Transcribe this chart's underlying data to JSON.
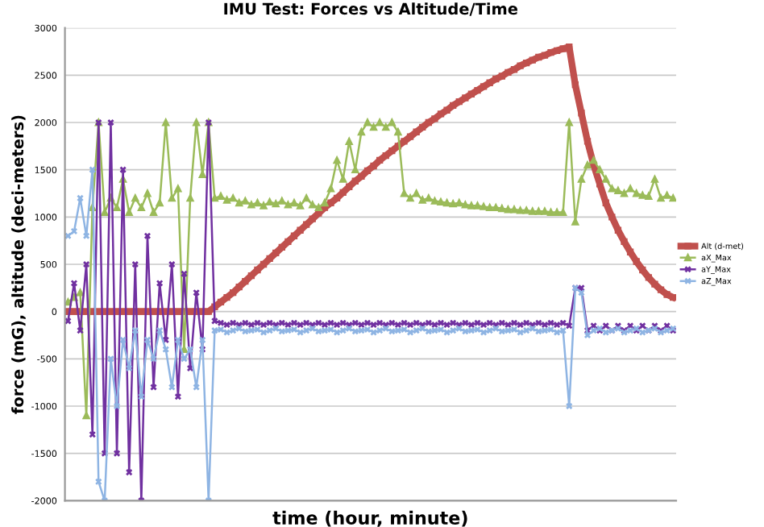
{
  "chart_data": {
    "type": "line",
    "title": "IMU Test: Forces vs Altitude/Time",
    "xlabel": "time (hour, minute)",
    "ylabel": "force (mG), altitude (deci-meters)",
    "categories": [
      null,
      null,
      null,
      null,
      null,
      null,
      null,
      null,
      null,
      null,
      null,
      null,
      null,
      null,
      null,
      null,
      null,
      null,
      null,
      null,
      null,
      null,
      null,
      null,
      null,
      null,
      null,
      null,
      null,
      null,
      null,
      null,
      null,
      null,
      null,
      null,
      null,
      null,
      null,
      null,
      null,
      null,
      null,
      null,
      null,
      null,
      null,
      null,
      null,
      null,
      null,
      null,
      null,
      null,
      null,
      null,
      null,
      null,
      null,
      null,
      null,
      null,
      null,
      null,
      null,
      null,
      null,
      null,
      null,
      null,
      null,
      null,
      null,
      null,
      null,
      null,
      null,
      null,
      null,
      null,
      null,
      null,
      null,
      null,
      null,
      null,
      null,
      null,
      null,
      null,
      null,
      null,
      null,
      null,
      null,
      null,
      null,
      null,
      null,
      null
    ],
    "ylim": [
      -2000,
      3000
    ],
    "yticks": [
      -2000,
      -1500,
      -1000,
      -500,
      0,
      500,
      1000,
      1500,
      2000,
      2500,
      3000
    ],
    "grid": "y",
    "legend": "right",
    "line_style": "solid",
    "series": [
      {
        "name": "Alt (d-met)",
        "color": "#c0504d",
        "marker": "square",
        "values": [
          0,
          0,
          0,
          0,
          0,
          0,
          0,
          0,
          0,
          0,
          0,
          0,
          0,
          0,
          0,
          0,
          0,
          0,
          0,
          0,
          0,
          0,
          0,
          0,
          50,
          100,
          150,
          200,
          260,
          320,
          380,
          440,
          500,
          560,
          620,
          680,
          740,
          800,
          860,
          920,
          980,
          1040,
          1100,
          1150,
          1200,
          1260,
          1320,
          1380,
          1430,
          1490,
          1540,
          1600,
          1650,
          1700,
          1750,
          1800,
          1850,
          1900,
          1950,
          2000,
          2040,
          2090,
          2130,
          2180,
          2220,
          2260,
          2300,
          2340,
          2380,
          2420,
          2460,
          2490,
          2530,
          2560,
          2600,
          2630,
          2660,
          2690,
          2710,
          2740,
          2760,
          2780,
          2800,
          2400,
          2100,
          1800,
          1550,
          1350,
          1150,
          1000,
          860,
          740,
          630,
          530,
          440,
          360,
          290,
          230,
          180,
          150
        ]
      },
      {
        "name": "aX_Max",
        "color": "#9bbb59",
        "marker": "triangle",
        "values": [
          100,
          150,
          200,
          -1100,
          1100,
          2000,
          1050,
          1200,
          1100,
          1400,
          1050,
          1200,
          1100,
          1250,
          1050,
          1150,
          2000,
          1200,
          1300,
          -400,
          1200,
          2000,
          1450,
          2000,
          1200,
          1220,
          1180,
          1200,
          1150,
          1170,
          1130,
          1150,
          1120,
          1160,
          1140,
          1170,
          1130,
          1150,
          1120,
          1200,
          1130,
          1100,
          1150,
          1300,
          1600,
          1400,
          1800,
          1500,
          1900,
          2000,
          1950,
          2000,
          1950,
          2000,
          1900,
          1250,
          1200,
          1250,
          1180,
          1200,
          1170,
          1160,
          1150,
          1140,
          1150,
          1130,
          1120,
          1120,
          1110,
          1100,
          1100,
          1090,
          1080,
          1080,
          1070,
          1070,
          1060,
          1060,
          1060,
          1050,
          1050,
          1050,
          2000,
          950,
          1400,
          1550,
          1600,
          1500,
          1400,
          1300,
          1280,
          1250,
          1300,
          1250,
          1230,
          1220,
          1400,
          1200,
          1230,
          1200
        ]
      },
      {
        "name": "aY_Max",
        "color": "#7030a0",
        "marker": "cross",
        "values": [
          -100,
          300,
          -200,
          500,
          -1300,
          2000,
          -1500,
          2000,
          -1500,
          1500,
          -1700,
          500,
          -2000,
          800,
          -800,
          300,
          -300,
          500,
          -900,
          400,
          -600,
          200,
          -400,
          2000,
          -100,
          -120,
          -140,
          -120,
          -140,
          -120,
          -140,
          -120,
          -140,
          -120,
          -140,
          -120,
          -140,
          -120,
          -140,
          -120,
          -140,
          -120,
          -140,
          -120,
          -140,
          -120,
          -140,
          -120,
          -140,
          -120,
          -140,
          -120,
          -140,
          -120,
          -140,
          -120,
          -140,
          -120,
          -140,
          -120,
          -140,
          -120,
          -140,
          -120,
          -140,
          -120,
          -140,
          -120,
          -140,
          -120,
          -140,
          -120,
          -140,
          -120,
          -140,
          -120,
          -140,
          -120,
          -140,
          -120,
          -140,
          -120,
          -150,
          250,
          250,
          -200,
          -150,
          -200,
          -150,
          -200,
          -150,
          -200,
          -150,
          -200,
          -150,
          -200,
          -150,
          -200,
          -150,
          -200
        ]
      },
      {
        "name": "aZ_Max",
        "color": "#8eb4e3",
        "marker": "cross",
        "values": [
          800,
          850,
          1200,
          800,
          1500,
          -1800,
          -2000,
          -500,
          -1000,
          -300,
          -600,
          -200,
          -900,
          -300,
          -500,
          -200,
          -400,
          -800,
          -300,
          -500,
          -400,
          -800,
          -300,
          -2000,
          -200,
          -190,
          -220,
          -200,
          -180,
          -210,
          -200,
          -190,
          -220,
          -200,
          -180,
          -210,
          -200,
          -190,
          -220,
          -200,
          -180,
          -210,
          -200,
          -190,
          -220,
          -200,
          -180,
          -210,
          -200,
          -190,
          -220,
          -200,
          -180,
          -210,
          -200,
          -190,
          -220,
          -200,
          -180,
          -210,
          -200,
          -190,
          -220,
          -200,
          -180,
          -210,
          -200,
          -190,
          -220,
          -200,
          -180,
          -210,
          -200,
          -190,
          -220,
          -200,
          -180,
          -210,
          -200,
          -190,
          -220,
          -200,
          -1000,
          250,
          200,
          -250,
          -200,
          -180,
          -220,
          -200,
          -180,
          -220,
          -200,
          -180,
          -220,
          -200,
          -180,
          -220,
          -200,
          -180
        ]
      }
    ]
  }
}
